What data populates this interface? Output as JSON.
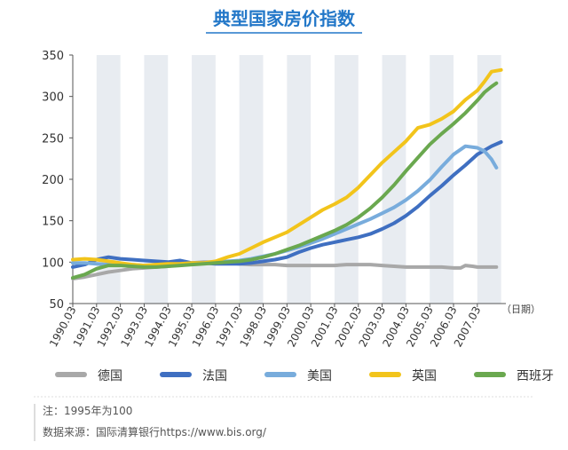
{
  "chart_data": {
    "type": "line",
    "title": "典型国家房价指数",
    "x_unit_label": "（日期）",
    "xlim": [
      1990.0,
      2008.2
    ],
    "ylim": [
      50,
      350
    ],
    "yticks": [
      50,
      100,
      150,
      200,
      250,
      300,
      350
    ],
    "xtick_labels": [
      "1990.03",
      "1991.03",
      "1992.03",
      "1993.03",
      "1994.03",
      "1995.03",
      "1996.03",
      "1997.03",
      "1998.03",
      "1999.03",
      "2000.03",
      "2001.03",
      "2002.03",
      "2003.03",
      "2004.03",
      "2005.03",
      "2006.03",
      "2007.03"
    ],
    "xtick_values": [
      1990.0,
      1991.0,
      1992.0,
      1993.0,
      1994.0,
      1995.0,
      1996.0,
      1997.0,
      1998.0,
      1999.0,
      2000.0,
      2001.0,
      2002.0,
      2003.0,
      2004.0,
      2005.0,
      2006.0,
      2007.0
    ],
    "grid": "vertical-bands",
    "legend_position": "bottom",
    "series": [
      {
        "name": "德国",
        "color": "#a8a8a8",
        "points": [
          [
            1990.0,
            80
          ],
          [
            1990.5,
            82
          ],
          [
            1991.0,
            85
          ],
          [
            1991.5,
            88
          ],
          [
            1992.0,
            90
          ],
          [
            1992.5,
            92
          ],
          [
            1993.0,
            93
          ],
          [
            1993.5,
            94
          ],
          [
            1994.0,
            95
          ],
          [
            1994.5,
            97
          ],
          [
            1995.0,
            99
          ],
          [
            1995.5,
            100
          ],
          [
            1996.0,
            100
          ],
          [
            1996.5,
            99
          ],
          [
            1997.0,
            98
          ],
          [
            1997.5,
            97
          ],
          [
            1998.0,
            97
          ],
          [
            1998.5,
            97
          ],
          [
            1999.0,
            96
          ],
          [
            1999.5,
            96
          ],
          [
            2000.0,
            96
          ],
          [
            2000.5,
            96
          ],
          [
            2001.0,
            96
          ],
          [
            2001.5,
            97
          ],
          [
            2002.0,
            97
          ],
          [
            2002.5,
            97
          ],
          [
            2003.0,
            96
          ],
          [
            2003.5,
            95
          ],
          [
            2004.0,
            94
          ],
          [
            2004.5,
            94
          ],
          [
            2005.0,
            94
          ],
          [
            2005.5,
            94
          ],
          [
            2006.0,
            93
          ],
          [
            2006.3,
            93
          ],
          [
            2006.5,
            96
          ],
          [
            2006.8,
            95
          ],
          [
            2007.0,
            94
          ],
          [
            2007.5,
            94
          ],
          [
            2007.8,
            94
          ]
        ]
      },
      {
        "name": "法国",
        "color": "#3f6fc1",
        "points": [
          [
            1990.0,
            94
          ],
          [
            1990.5,
            97
          ],
          [
            1991.0,
            103
          ],
          [
            1991.5,
            106
          ],
          [
            1992.0,
            104
          ],
          [
            1992.5,
            103
          ],
          [
            1993.0,
            102
          ],
          [
            1993.5,
            101
          ],
          [
            1994.0,
            100
          ],
          [
            1994.5,
            102
          ],
          [
            1995.0,
            99
          ],
          [
            1995.5,
            99
          ],
          [
            1996.0,
            98
          ],
          [
            1996.5,
            98
          ],
          [
            1997.0,
            98
          ],
          [
            1997.5,
            99
          ],
          [
            1998.0,
            101
          ],
          [
            1998.5,
            103
          ],
          [
            1999.0,
            106
          ],
          [
            1999.5,
            112
          ],
          [
            2000.0,
            117
          ],
          [
            2000.5,
            121
          ],
          [
            2001.0,
            124
          ],
          [
            2001.5,
            127
          ],
          [
            2002.0,
            130
          ],
          [
            2002.5,
            134
          ],
          [
            2003.0,
            140
          ],
          [
            2003.5,
            147
          ],
          [
            2004.0,
            156
          ],
          [
            2004.5,
            167
          ],
          [
            2005.0,
            180
          ],
          [
            2005.5,
            192
          ],
          [
            2006.0,
            205
          ],
          [
            2006.5,
            217
          ],
          [
            2007.0,
            230
          ],
          [
            2007.3,
            235
          ],
          [
            2007.6,
            240
          ],
          [
            2008.0,
            245
          ]
        ]
      },
      {
        "name": "美国",
        "color": "#78acdc",
        "points": [
          [
            1990.0,
            99
          ],
          [
            1990.5,
            99
          ],
          [
            1991.0,
            98
          ],
          [
            1991.5,
            97
          ],
          [
            1992.0,
            97
          ],
          [
            1992.5,
            97
          ],
          [
            1993.0,
            96
          ],
          [
            1993.5,
            96
          ],
          [
            1994.0,
            97
          ],
          [
            1994.5,
            97
          ],
          [
            1995.0,
            98
          ],
          [
            1995.5,
            99
          ],
          [
            1996.0,
            100
          ],
          [
            1996.5,
            101
          ],
          [
            1997.0,
            102
          ],
          [
            1997.5,
            104
          ],
          [
            1998.0,
            107
          ],
          [
            1998.5,
            110
          ],
          [
            1999.0,
            114
          ],
          [
            1999.5,
            118
          ],
          [
            2000.0,
            123
          ],
          [
            2000.5,
            128
          ],
          [
            2001.0,
            134
          ],
          [
            2001.5,
            140
          ],
          [
            2002.0,
            146
          ],
          [
            2002.5,
            152
          ],
          [
            2003.0,
            159
          ],
          [
            2003.5,
            166
          ],
          [
            2004.0,
            175
          ],
          [
            2004.5,
            186
          ],
          [
            2005.0,
            199
          ],
          [
            2005.5,
            215
          ],
          [
            2006.0,
            230
          ],
          [
            2006.5,
            240
          ],
          [
            2007.0,
            238
          ],
          [
            2007.3,
            234
          ],
          [
            2007.6,
            224
          ],
          [
            2007.8,
            214
          ]
        ]
      },
      {
        "name": "英国",
        "color": "#f2c41b",
        "points": [
          [
            1990.0,
            103
          ],
          [
            1990.5,
            104
          ],
          [
            1991.0,
            103
          ],
          [
            1991.5,
            101
          ],
          [
            1992.0,
            99
          ],
          [
            1992.5,
            97
          ],
          [
            1993.0,
            96
          ],
          [
            1993.5,
            97
          ],
          [
            1994.0,
            98
          ],
          [
            1994.5,
            98
          ],
          [
            1995.0,
            99
          ],
          [
            1995.5,
            99
          ],
          [
            1996.0,
            101
          ],
          [
            1996.5,
            106
          ],
          [
            1997.0,
            110
          ],
          [
            1997.5,
            117
          ],
          [
            1998.0,
            124
          ],
          [
            1998.5,
            130
          ],
          [
            1999.0,
            136
          ],
          [
            1999.5,
            145
          ],
          [
            2000.0,
            154
          ],
          [
            2000.5,
            163
          ],
          [
            2001.0,
            170
          ],
          [
            2001.5,
            178
          ],
          [
            2002.0,
            190
          ],
          [
            2002.5,
            205
          ],
          [
            2003.0,
            220
          ],
          [
            2003.5,
            233
          ],
          [
            2004.0,
            246
          ],
          [
            2004.5,
            262
          ],
          [
            2005.0,
            266
          ],
          [
            2005.5,
            273
          ],
          [
            2006.0,
            282
          ],
          [
            2006.5,
            296
          ],
          [
            2007.0,
            307
          ],
          [
            2007.3,
            318
          ],
          [
            2007.6,
            330
          ],
          [
            2008.0,
            332
          ]
        ]
      },
      {
        "name": "西班牙",
        "color": "#6aa84f",
        "points": [
          [
            1990.0,
            81
          ],
          [
            1990.5,
            85
          ],
          [
            1991.0,
            92
          ],
          [
            1991.5,
            96
          ],
          [
            1992.0,
            96
          ],
          [
            1992.5,
            95
          ],
          [
            1993.0,
            94
          ],
          [
            1993.5,
            94
          ],
          [
            1994.0,
            95
          ],
          [
            1994.5,
            96
          ],
          [
            1995.0,
            97
          ],
          [
            1995.5,
            98
          ],
          [
            1996.0,
            99
          ],
          [
            1996.5,
            100
          ],
          [
            1997.0,
            101
          ],
          [
            1997.5,
            103
          ],
          [
            1998.0,
            106
          ],
          [
            1998.5,
            110
          ],
          [
            1999.0,
            115
          ],
          [
            1999.5,
            120
          ],
          [
            2000.0,
            126
          ],
          [
            2000.5,
            132
          ],
          [
            2001.0,
            138
          ],
          [
            2001.5,
            145
          ],
          [
            2002.0,
            154
          ],
          [
            2002.5,
            165
          ],
          [
            2003.0,
            178
          ],
          [
            2003.5,
            193
          ],
          [
            2004.0,
            210
          ],
          [
            2004.5,
            226
          ],
          [
            2005.0,
            242
          ],
          [
            2005.5,
            255
          ],
          [
            2006.0,
            267
          ],
          [
            2006.5,
            280
          ],
          [
            2007.0,
            295
          ],
          [
            2007.3,
            305
          ],
          [
            2007.6,
            312
          ],
          [
            2007.8,
            316
          ]
        ]
      }
    ]
  },
  "legend": [
    {
      "label": "德国",
      "color": "#a8a8a8"
    },
    {
      "label": "法国",
      "color": "#3f6fc1"
    },
    {
      "label": "美国",
      "color": "#78acdc"
    },
    {
      "label": "英国",
      "color": "#f2c41b"
    },
    {
      "label": "西班牙",
      "color": "#6aa84f"
    }
  ],
  "notes": {
    "note": "注：1995年为100",
    "source": "数据来源：国际清算银行https://www.bis.org/"
  },
  "colors": {
    "title": "#2277c8",
    "band": "#e8ecf1",
    "axis": "#555555"
  }
}
